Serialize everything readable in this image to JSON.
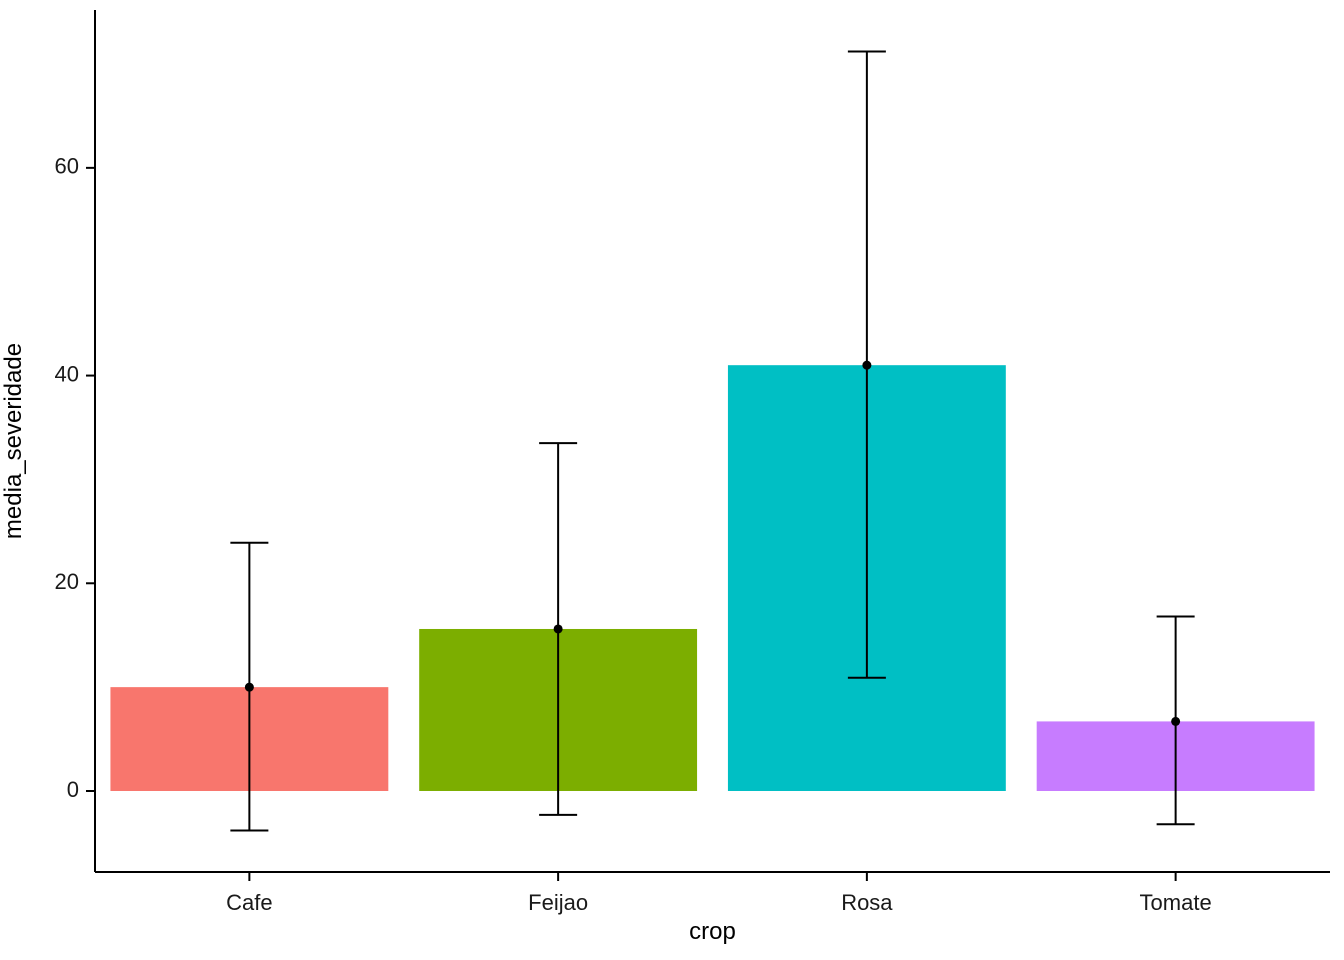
{
  "chart_data": {
    "type": "bar",
    "title": "",
    "xlabel": "crop",
    "ylabel": "media_severidade",
    "categories": [
      "Cafe",
      "Feijao",
      "Rosa",
      "Tomate"
    ],
    "values": [
      10,
      15.6,
      41,
      6.7
    ],
    "error_low": [
      -3.8,
      -2.3,
      10.9,
      -3.2
    ],
    "error_high": [
      23.9,
      33.5,
      71.2,
      16.8
    ],
    "bar_colors": [
      "#F8766D",
      "#7CAE00",
      "#00BFC4",
      "#C77CFF"
    ],
    "ylim": [
      -7.8,
      75.2
    ],
    "yticks": [
      0,
      20,
      40,
      60
    ],
    "grid": false,
    "legend": "none",
    "axis_color": "#000000",
    "error_bar_color": "#000000",
    "point_color": "#000000",
    "tick_label_color": "#1a1a1a"
  }
}
